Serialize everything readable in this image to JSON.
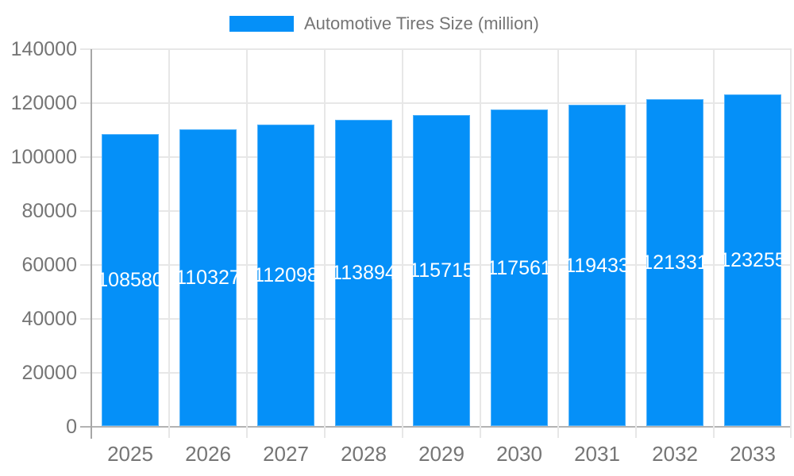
{
  "legend": {
    "label": "Automotive Tires Size (million)"
  },
  "chart_data": {
    "type": "bar",
    "title": "Automotive Tires Size (million)",
    "categories": [
      "2025",
      "2026",
      "2027",
      "2028",
      "2029",
      "2030",
      "2031",
      "2032",
      "2033"
    ],
    "series": [
      {
        "name": "Automotive Tires Size (million)",
        "values": [
          108580,
          110327,
          112098,
          113894,
          115715,
          117561,
          119433,
          121331,
          123255
        ]
      }
    ],
    "bar_labels": [
      "108580",
      "110327",
      "112098",
      "113894",
      "115715",
      "117561",
      "119433",
      "121331",
      "123255"
    ],
    "xlabel": "",
    "ylabel": "",
    "ylim": [
      0,
      140000
    ],
    "ytick_values": [
      0,
      20000,
      40000,
      60000,
      80000,
      100000,
      120000,
      140000
    ],
    "ytick_labels": [
      "0",
      "20000",
      "40000",
      "60000",
      "80000",
      "100000",
      "120000",
      "140000"
    ],
    "grid": true,
    "legend_position": "top-center",
    "colors": {
      "bar": "#0590f8",
      "bar_label": "#ffffff",
      "axis_text": "#757575",
      "gridline": "#e7e7e7",
      "baseline": "#b3b3b3",
      "axis_line": "#a6a6a6",
      "background": "#ffffff"
    }
  }
}
